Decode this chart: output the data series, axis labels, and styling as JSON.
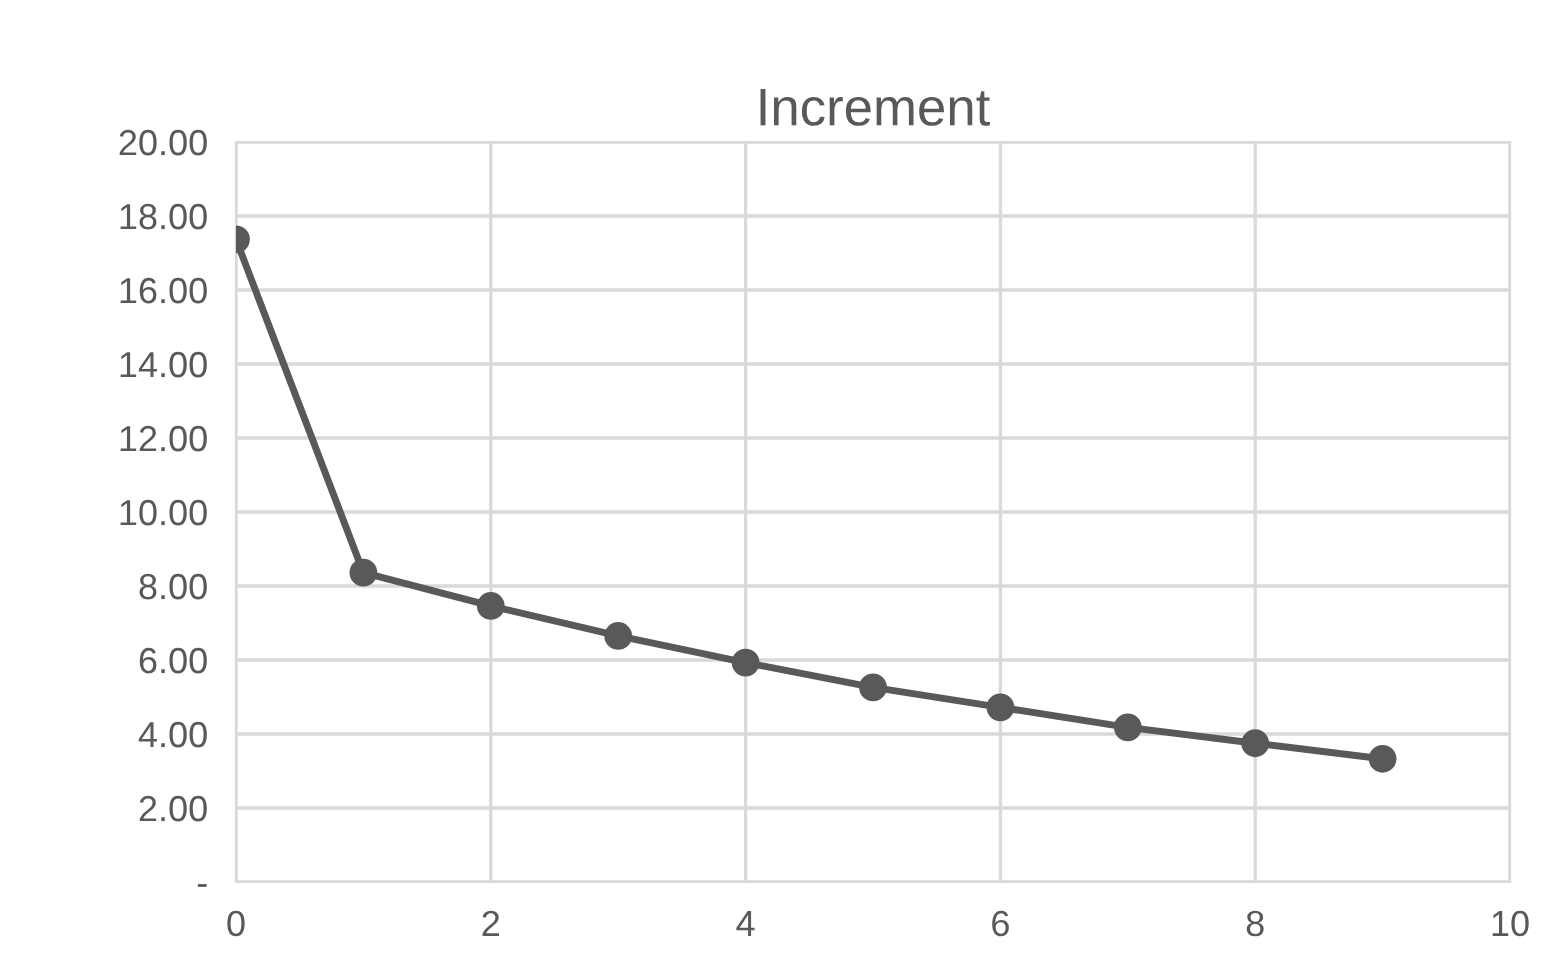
{
  "chart_data": {
    "type": "line",
    "title": "Increment",
    "x": [
      0,
      1,
      2,
      3,
      4,
      5,
      6,
      7,
      8,
      9
    ],
    "series": [
      {
        "color": "#595959",
        "values": [
          17.37,
          8.36,
          7.46,
          6.65,
          5.93,
          5.26,
          4.72,
          4.18,
          3.75,
          3.33
        ]
      }
    ],
    "xlim": [
      0,
      10
    ],
    "xticks": [
      0,
      2,
      4,
      6,
      8,
      10
    ],
    "ylim": [
      0,
      20
    ],
    "yticks": [
      {
        "value": 0,
        "label": "-"
      },
      {
        "value": 2,
        "label": "2.00"
      },
      {
        "value": 4,
        "label": "4.00"
      },
      {
        "value": 6,
        "label": "6.00"
      },
      {
        "value": 8,
        "label": "8.00"
      },
      {
        "value": 10,
        "label": "10.00"
      },
      {
        "value": 12,
        "label": "12.00"
      },
      {
        "value": 14,
        "label": "14.00"
      },
      {
        "value": 16,
        "label": "16.00"
      },
      {
        "value": 18,
        "label": "18.00"
      },
      {
        "value": 20,
        "label": "20.00"
      }
    ],
    "grid": true,
    "marker": "circle",
    "line_style": "solid"
  }
}
